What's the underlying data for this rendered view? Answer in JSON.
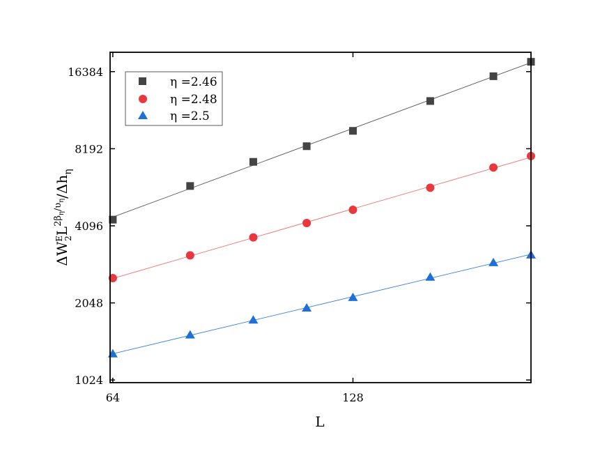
{
  "chart_data": {
    "type": "scatter",
    "xlabel": "L",
    "ylabel_parts": {
      "delta": "Δ",
      "W": "W",
      "E": "E",
      "two": "2",
      "L": "L",
      "exp_beta": "2β",
      "exp_eta1": "η",
      "exp_slash_nu": "/υ",
      "exp_eta2": "η",
      "slash_dh": "/Δh",
      "eta": "η"
    },
    "x_scale": "log2",
    "y_scale": "log2",
    "xlim": [
      63.5,
      214
    ],
    "ylim": [
      1000,
      19500
    ],
    "x_ticks": [
      64,
      128
    ],
    "x_tick_labels": [
      "64",
      "128"
    ],
    "y_ticks": [
      1024,
      2048,
      4096,
      8192,
      16384
    ],
    "y_tick_labels": [
      "1024",
      "2048",
      "4096",
      "8192",
      "16384"
    ],
    "x": [
      64,
      80,
      96,
      112,
      128,
      160,
      192,
      214
    ],
    "series": [
      {
        "name": "η =2.46",
        "marker": "square",
        "color": "#444444",
        "line_color": "#555555",
        "values": [
          4330,
          5860,
          7280,
          8380,
          9620,
          12580,
          15720,
          17900
        ]
      },
      {
        "name": "η =2.48",
        "marker": "circle",
        "color": "#e8383d",
        "line_color": "#f07070",
        "values": [
          2560,
          3140,
          3690,
          4200,
          4730,
          5770,
          6920,
          7670
        ]
      },
      {
        "name": "η =2.5",
        "marker": "triangle",
        "color": "#1f6fd8",
        "line_color": "#3a80e0",
        "values": [
          1295,
          1535,
          1755,
          1955,
          2150,
          2580,
          2940,
          3150
        ]
      }
    ],
    "legend_position": "top-left",
    "grid": false
  }
}
